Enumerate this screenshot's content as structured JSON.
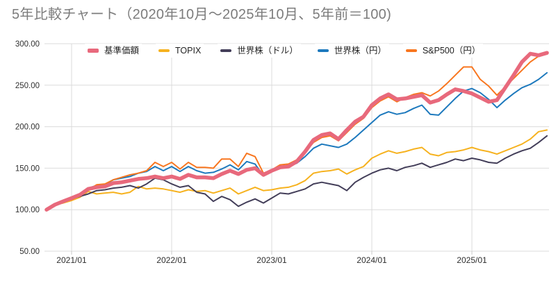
{
  "title": "5年比較チャート（2020年10月〜2025年10月、5年前＝100)",
  "colors": {
    "fund_nav": "#e8697c",
    "topix": "#f6b21f",
    "world_usd": "#433e59",
    "world_jpy": "#1d79bd",
    "sp500_jpy": "#f8761f",
    "gridline": "#dbdbdb",
    "tick": "#c8c8c8",
    "axis_text": "#2f2f2f",
    "title_text": "#7c7c7c"
  },
  "chart_data": {
    "type": "line",
    "title": "5年比較チャート（2020年10月〜2025年10月、5年前＝100)",
    "x_start": "2020/10",
    "x_end": "2025/10",
    "x_interval": "monthly",
    "grid": true,
    "legend_position": "top",
    "ylim": [
      50,
      300
    ],
    "y_axis": {
      "values": [
        300,
        250,
        200,
        150,
        100,
        50
      ],
      "labels": [
        "300.00",
        "250.00",
        "200.00",
        "150.00",
        "100.00",
        "50.00"
      ]
    },
    "x_axis": {
      "month_indices": [
        3,
        15,
        27,
        39,
        51
      ],
      "labels": [
        "2021/01",
        "2022/01",
        "2023/01",
        "2024/01",
        "2025/01"
      ]
    },
    "series": [
      {
        "key": "fund-nav",
        "name": "基準価額",
        "color": "#e8697c",
        "line_width": 5.5,
        "values": [
          100,
          106,
          110,
          114,
          118,
          125,
          127,
          128,
          132,
          133,
          135,
          137,
          138,
          140,
          138,
          140,
          137,
          142,
          139,
          139,
          138,
          143,
          147,
          143,
          148,
          150,
          142,
          147,
          151,
          152,
          158,
          170,
          184,
          190,
          192,
          185,
          196,
          206,
          212,
          226,
          234,
          239,
          233,
          234,
          236,
          238,
          229,
          232,
          239,
          245,
          243,
          240,
          235,
          230,
          232,
          247,
          262,
          278,
          288,
          286,
          289
        ]
      },
      {
        "key": "topix",
        "name": "TOPIX",
        "color": "#f6b21f",
        "line_width": 2,
        "values": [
          100,
          106,
          108,
          111,
          115,
          122,
          119,
          120,
          121,
          119,
          121,
          128,
          125,
          126,
          125,
          123,
          121,
          124,
          122,
          123,
          120,
          123,
          126,
          119,
          123,
          127,
          123,
          124,
          126,
          127,
          130,
          135,
          144,
          146,
          147,
          149,
          143,
          148,
          152,
          162,
          167,
          171,
          168,
          170,
          173,
          175,
          167,
          165,
          169,
          170,
          172,
          175,
          172,
          170,
          167,
          171,
          175,
          179,
          185,
          194,
          196
        ]
      },
      {
        "key": "world-usd",
        "name": "世界株（ドル）",
        "color": "#433e59",
        "line_width": 2,
        "values": [
          100,
          107,
          111,
          113,
          116,
          119,
          123,
          124,
          126,
          127,
          129,
          126,
          131,
          138,
          136,
          131,
          127,
          129,
          121,
          119,
          110,
          116,
          112,
          104,
          109,
          113,
          108,
          114,
          120,
          119,
          122,
          125,
          131,
          133,
          131,
          129,
          123,
          133,
          139,
          144,
          148,
          150,
          147,
          151,
          153,
          156,
          151,
          154,
          157,
          161,
          159,
          162,
          160,
          157,
          156,
          162,
          167,
          171,
          174,
          181,
          189
        ]
      },
      {
        "key": "world-jpy",
        "name": "世界株（円）",
        "color": "#1d79bd",
        "line_width": 2,
        "values": [
          100,
          107,
          111,
          114,
          119,
          126,
          129,
          130,
          136,
          138,
          140,
          144,
          146,
          152,
          147,
          152,
          146,
          152,
          147,
          144,
          145,
          149,
          154,
          148,
          158,
          155,
          141,
          146,
          150,
          152,
          156,
          164,
          174,
          179,
          177,
          175,
          179,
          187,
          196,
          205,
          214,
          218,
          215,
          217,
          222,
          226,
          215,
          214,
          224,
          234,
          243,
          246,
          241,
          233,
          223,
          232,
          240,
          247,
          251,
          257,
          265
        ]
      },
      {
        "key": "sp500-jpy",
        "name": "S&P500（円）",
        "color": "#f8761f",
        "line_width": 2,
        "values": [
          100,
          106,
          110,
          112,
          117,
          124,
          130,
          131,
          136,
          139,
          142,
          144,
          147,
          157,
          152,
          157,
          149,
          157,
          151,
          151,
          150,
          161,
          161,
          152,
          168,
          164,
          144,
          148,
          154,
          155,
          160,
          169,
          181,
          187,
          189,
          183,
          193,
          203,
          210,
          223,
          231,
          236,
          230,
          235,
          239,
          241,
          237,
          243,
          252,
          262,
          272,
          272,
          257,
          249,
          238,
          248,
          258,
          268,
          278,
          285,
          288
        ]
      }
    ]
  }
}
